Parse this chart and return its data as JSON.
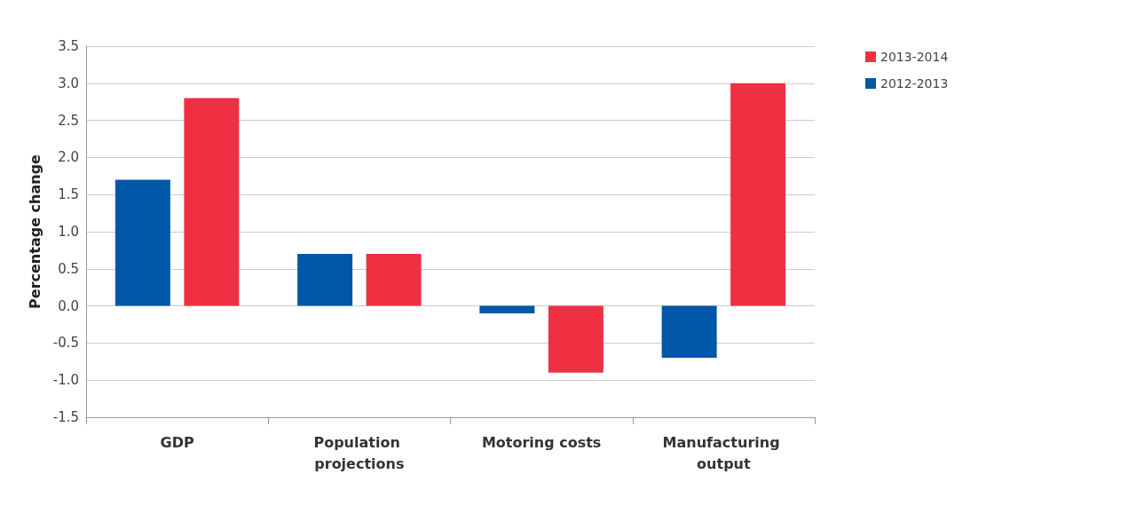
{
  "chart_data": {
    "type": "bar",
    "ylabel": "Percentage change",
    "categories": [
      "GDP",
      "Population projections",
      "Motoring costs",
      "Manufacturing output"
    ],
    "series": [
      {
        "name": "2012-2013",
        "color": "#0057a8",
        "values": [
          1.7,
          0.7,
          -0.1,
          -0.7
        ]
      },
      {
        "name": "2013-2014",
        "color": "#ee3042",
        "values": [
          2.8,
          0.7,
          -0.9,
          3.0
        ]
      }
    ],
    "ylim": [
      -1.5,
      3.5
    ],
    "yticks": [
      -1.5,
      {
        "value": -1,
        "label": "-1.0"
      },
      -0.5,
      {
        "value": 0,
        "label": "0.0"
      },
      0.5,
      {
        "value": 1,
        "label": "1.0"
      },
      1.5,
      {
        "value": 2,
        "label": "2.0"
      },
      2.5,
      {
        "value": 3,
        "label": "3.0"
      },
      3.5
    ],
    "grid": "y",
    "legend": "top right"
  }
}
